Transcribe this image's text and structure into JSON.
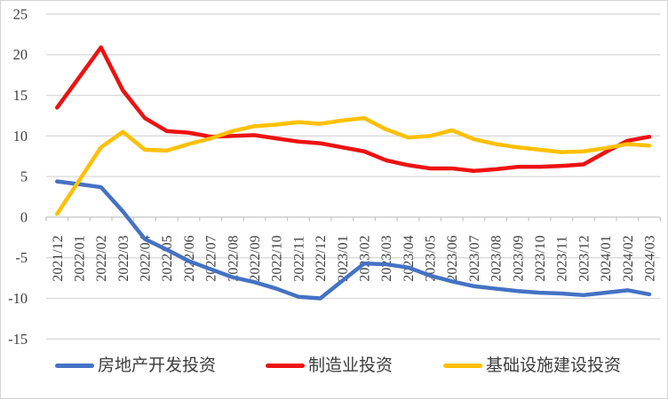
{
  "chart_data": {
    "type": "line",
    "title": "",
    "xlabel": "",
    "ylabel": "",
    "x": [
      "2021/12",
      "2022/01",
      "2022/02",
      "2022/03",
      "2022/04",
      "2022/05",
      "2022/06",
      "2022/07",
      "2022/08",
      "2022/09",
      "2022/10",
      "2022/11",
      "2022/12",
      "2023/01",
      "2023/02",
      "2023/03",
      "2023/04",
      "2023/05",
      "2023/06",
      "2023/07",
      "2023/08",
      "2023/09",
      "2023/10",
      "2023/11",
      "2023/12",
      "2024/01",
      "2024/02",
      "2024/03"
    ],
    "series": [
      {
        "name": "房地产开发投资",
        "color": "#4472C4",
        "values": [
          4.4,
          4.05,
          3.7,
          0.7,
          -2.7,
          -4.0,
          -5.4,
          -6.4,
          -7.4,
          -8.0,
          -8.8,
          -9.8,
          -10.0,
          -7.85,
          -5.7,
          -5.8,
          -6.2,
          -7.2,
          -7.9,
          -8.5,
          -8.8,
          -9.1,
          -9.3,
          -9.4,
          -9.6,
          -9.3,
          -9.0,
          -9.5
        ]
      },
      {
        "name": "制造业投资",
        "color": "#EE1111",
        "values": [
          13.5,
          17.2,
          20.9,
          15.6,
          12.2,
          10.6,
          10.4,
          9.9,
          10.0,
          10.1,
          9.7,
          9.3,
          9.1,
          8.6,
          8.1,
          7.0,
          6.4,
          6.0,
          6.0,
          5.7,
          5.9,
          6.2,
          6.2,
          6.3,
          6.5,
          8.0,
          9.4,
          9.9
        ]
      },
      {
        "name": "基础设施建设投资",
        "color": "#FFC000",
        "values": [
          0.4,
          4.5,
          8.6,
          10.5,
          8.3,
          8.2,
          9.0,
          9.7,
          10.6,
          11.2,
          11.4,
          11.7,
          11.5,
          11.9,
          12.2,
          10.8,
          9.8,
          10.0,
          10.7,
          9.6,
          9.0,
          8.6,
          8.3,
          8.0,
          8.1,
          8.5,
          9.0,
          8.8
        ]
      }
    ],
    "yticks": [
      25,
      20,
      15,
      10,
      5,
      0,
      -5,
      -10,
      -15
    ],
    "ylim": [
      -15,
      25
    ],
    "grid": "horizontal",
    "legend_position": "bottom",
    "style": {
      "grid_color": "#D9D9D9",
      "axis_color": "#C6C6C6",
      "label_color": "#404040",
      "frame_border_color": "#D5D5D5",
      "background": "#FFFFFF"
    }
  }
}
